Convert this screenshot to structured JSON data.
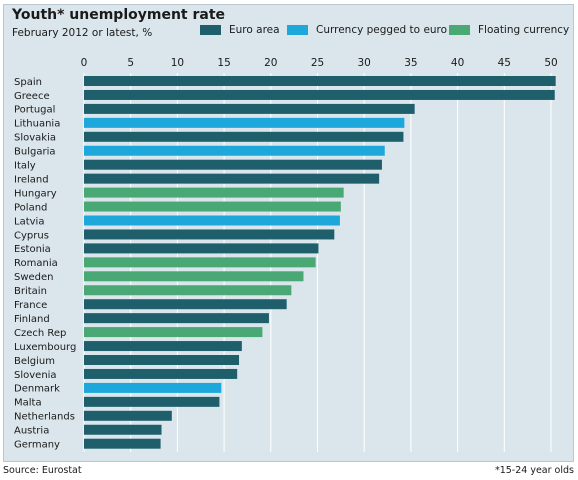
{
  "header": {
    "title": "Youth* unemployment rate",
    "subtitle": "February 2012 or latest, %"
  },
  "legend": [
    {
      "label": "Euro area",
      "color": "#1e5f6b"
    },
    {
      "label": "Currency pegged to euro",
      "color": "#1ea7db"
    },
    {
      "label": "Floating currency",
      "color": "#4aa874"
    }
  ],
  "footer": {
    "source": "Source: Eurostat",
    "note": "*15-24 year olds"
  },
  "chart_data": {
    "type": "bar",
    "orientation": "horizontal",
    "title": "Youth* unemployment rate",
    "subtitle": "February 2012 or latest, %",
    "xlim": [
      0,
      50
    ],
    "xticks": [
      0,
      5,
      10,
      15,
      20,
      25,
      30,
      35,
      40,
      45,
      50
    ],
    "grid": true,
    "legend_placement": "top",
    "categories": [
      "Spain",
      "Greece",
      "Portugal",
      "Lithuania",
      "Slovakia",
      "Bulgaria",
      "Italy",
      "Ireland",
      "Hungary",
      "Poland",
      "Latvia",
      "Cyprus",
      "Estonia",
      "Romania",
      "Sweden",
      "Britain",
      "France",
      "Finland",
      "Czech Rep",
      "Luxembourg",
      "Belgium",
      "Slovenia",
      "Denmark",
      "Malta",
      "Netherlands",
      "Austria",
      "Germany"
    ],
    "values": [
      50.5,
      50.4,
      35.4,
      34.3,
      34.2,
      32.2,
      31.9,
      31.6,
      27.8,
      27.5,
      27.4,
      26.8,
      25.1,
      24.8,
      23.5,
      22.2,
      21.7,
      19.8,
      19.1,
      16.9,
      16.6,
      16.4,
      14.7,
      14.5,
      9.4,
      8.3,
      8.2
    ],
    "groups": [
      "Euro area",
      "Euro area",
      "Euro area",
      "Currency pegged to euro",
      "Euro area",
      "Currency pegged to euro",
      "Euro area",
      "Euro area",
      "Floating currency",
      "Floating currency",
      "Currency pegged to euro",
      "Euro area",
      "Euro area",
      "Floating currency",
      "Floating currency",
      "Floating currency",
      "Euro area",
      "Euro area",
      "Floating currency",
      "Euro area",
      "Euro area",
      "Euro area",
      "Currency pegged to euro",
      "Euro area",
      "Euro area",
      "Euro area",
      "Euro area"
    ]
  }
}
